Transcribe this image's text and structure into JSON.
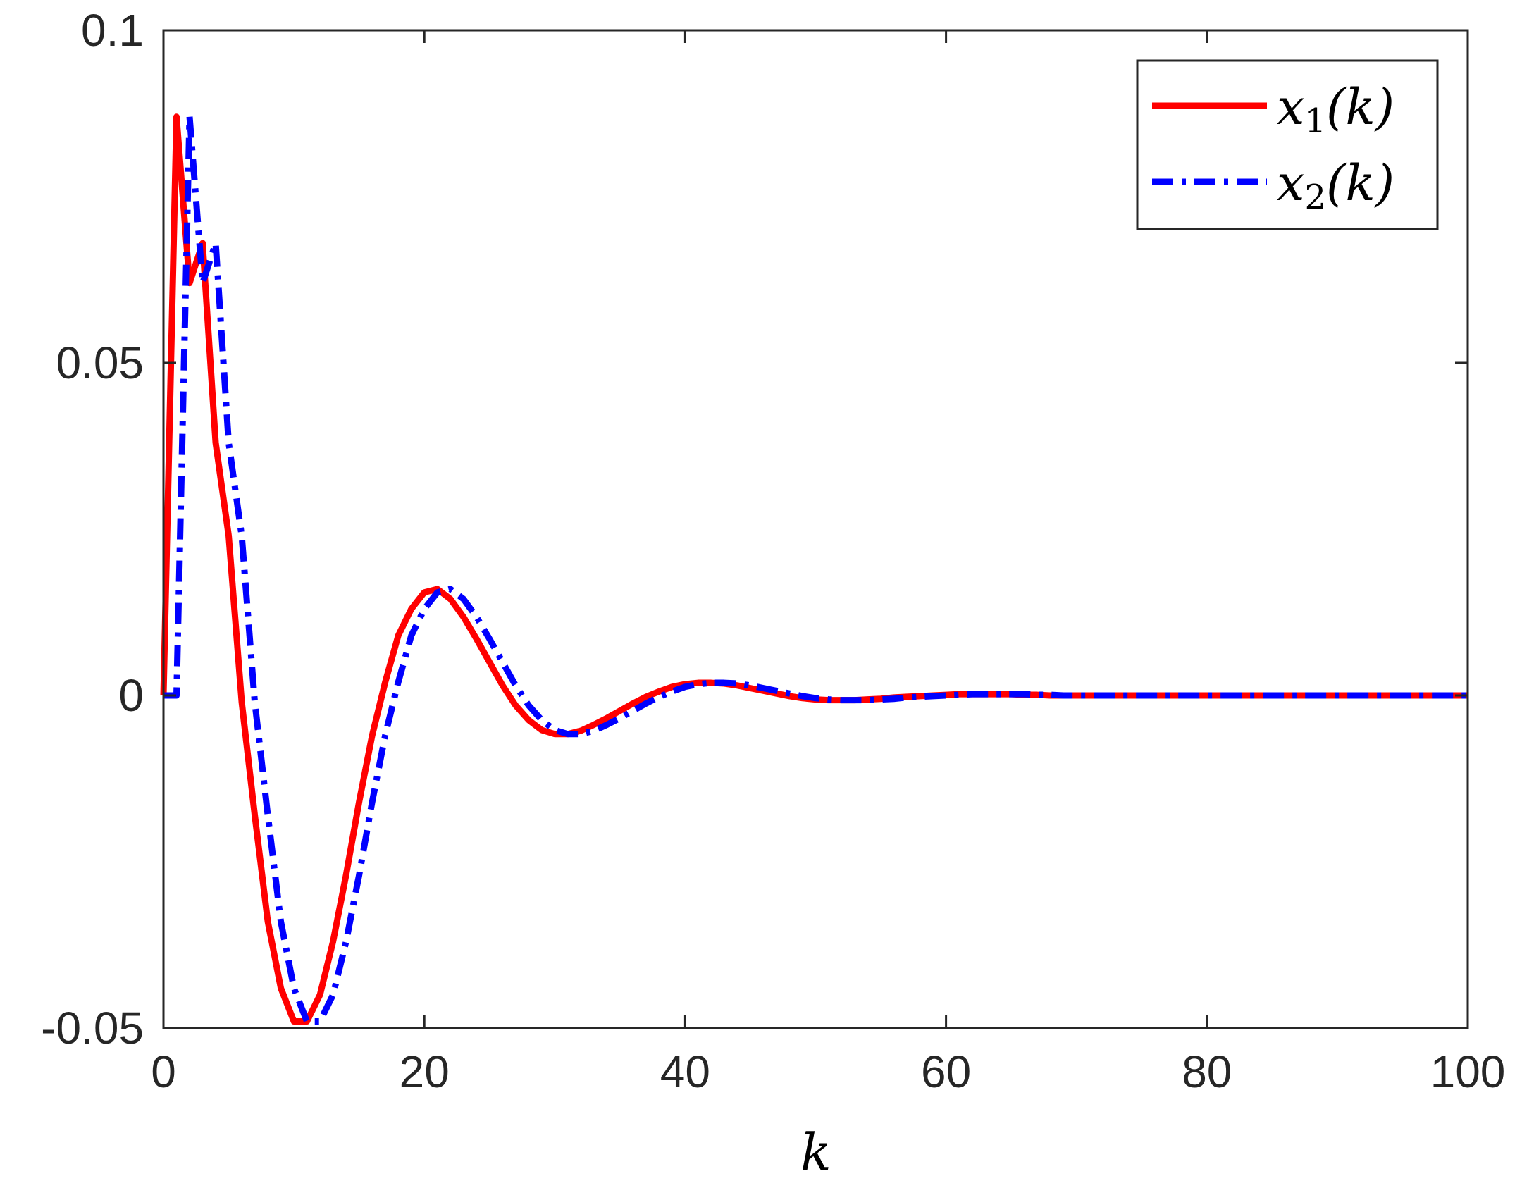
{
  "chart_data": {
    "type": "line",
    "xlabel": "k",
    "ylabel": "",
    "xlim": [
      0,
      100
    ],
    "ylim": [
      -0.05,
      0.1
    ],
    "xticks": [
      "0",
      "20",
      "40",
      "60",
      "80",
      "100"
    ],
    "yticks": [
      "-0.05",
      "0",
      "0.05",
      "0.1"
    ],
    "grid": false,
    "legend_position": "top-right",
    "series": [
      {
        "name": "x_1(k)",
        "legend_base": "x",
        "legend_sub": "1",
        "legend_arg": "(k)",
        "color": "#ff0000",
        "style": "solid",
        "x": [
          0,
          1,
          2,
          3,
          4,
          5,
          6,
          7,
          8,
          9,
          10,
          11,
          12,
          13,
          14,
          15,
          16,
          17,
          18,
          19,
          20,
          21,
          22,
          23,
          24,
          25,
          26,
          27,
          28,
          29,
          30,
          31,
          32,
          33,
          34,
          35,
          36,
          37,
          38,
          39,
          40,
          41,
          42,
          43,
          44,
          45,
          46,
          47,
          48,
          49,
          50,
          51,
          52,
          53,
          54,
          55,
          56,
          57,
          58,
          59,
          60,
          61,
          62,
          63,
          64,
          65,
          66,
          67,
          68,
          69,
          70,
          71,
          72,
          73,
          74,
          75,
          76,
          77,
          78,
          79,
          80,
          81,
          82,
          83,
          84,
          85,
          86,
          87,
          88,
          89,
          90,
          91,
          92,
          93,
          94,
          95,
          96,
          97,
          98,
          99,
          100
        ],
        "y": [
          0,
          0.087,
          0.062,
          0.068,
          0.038,
          0.024,
          -0.001,
          -0.018,
          -0.034,
          -0.044,
          -0.049,
          -0.049,
          -0.045,
          -0.037,
          -0.027,
          -0.016,
          -0.006,
          0.002,
          0.009,
          0.013,
          0.0155,
          0.016,
          0.0145,
          0.0118,
          0.0085,
          0.005,
          0.0015,
          -0.0015,
          -0.0037,
          -0.0052,
          -0.0058,
          -0.0058,
          -0.0053,
          -0.0044,
          -0.0034,
          -0.0023,
          -0.0012,
          -0.0002,
          0.0006,
          0.0013,
          0.0017,
          0.0019,
          0.0019,
          0.0018,
          0.0015,
          0.0011,
          0.0007,
          0.0003,
          -0.0001,
          -0.0004,
          -0.0006,
          -0.0007,
          -0.0007,
          -0.0007,
          -0.0006,
          -0.0005,
          -0.0003,
          -0.0002,
          -0.0001,
          0,
          0.0001,
          0.0002,
          0.0002,
          0.0002,
          0.0002,
          0.0002,
          0.0001,
          0.0001,
          0,
          0,
          0,
          0,
          0,
          0,
          0,
          0,
          0,
          0,
          0,
          0,
          0,
          0,
          0,
          0,
          0,
          0,
          0,
          0,
          0,
          0,
          0,
          0,
          0,
          0,
          0,
          0,
          0,
          0,
          0,
          0,
          0
        ]
      },
      {
        "name": "x_2(k)",
        "legend_base": "x",
        "legend_sub": "2",
        "legend_arg": "(k)",
        "color": "#0000ff",
        "style": "dashdot",
        "x": [
          0,
          1,
          2,
          3,
          4,
          5,
          6,
          7,
          8,
          9,
          10,
          11,
          12,
          13,
          14,
          15,
          16,
          17,
          18,
          19,
          20,
          21,
          22,
          23,
          24,
          25,
          26,
          27,
          28,
          29,
          30,
          31,
          32,
          33,
          34,
          35,
          36,
          37,
          38,
          39,
          40,
          41,
          42,
          43,
          44,
          45,
          46,
          47,
          48,
          49,
          50,
          51,
          52,
          53,
          54,
          55,
          56,
          57,
          58,
          59,
          60,
          61,
          62,
          63,
          64,
          65,
          66,
          67,
          68,
          69,
          70,
          71,
          72,
          73,
          74,
          75,
          76,
          77,
          78,
          79,
          80,
          81,
          82,
          83,
          84,
          85,
          86,
          87,
          88,
          89,
          90,
          91,
          92,
          93,
          94,
          95,
          96,
          97,
          98,
          99,
          100
        ],
        "y": [
          0,
          0,
          0.087,
          0.062,
          0.068,
          0.038,
          0.024,
          -0.001,
          -0.018,
          -0.034,
          -0.044,
          -0.049,
          -0.049,
          -0.045,
          -0.037,
          -0.027,
          -0.016,
          -0.006,
          0.002,
          0.009,
          0.013,
          0.0155,
          0.016,
          0.0145,
          0.0118,
          0.0085,
          0.005,
          0.0015,
          -0.0015,
          -0.0037,
          -0.0052,
          -0.0058,
          -0.0058,
          -0.0053,
          -0.0044,
          -0.0034,
          -0.0023,
          -0.0012,
          -0.0002,
          0.0006,
          0.0013,
          0.0017,
          0.0019,
          0.0019,
          0.0018,
          0.0015,
          0.0011,
          0.0007,
          0.0003,
          -0.0001,
          -0.0004,
          -0.0006,
          -0.0007,
          -0.0007,
          -0.0007,
          -0.0006,
          -0.0005,
          -0.0003,
          -0.0002,
          -0.0001,
          0,
          0.0001,
          0.0002,
          0.0002,
          0.0002,
          0.0002,
          0.0002,
          0.0001,
          0.0001,
          0,
          0,
          0,
          0,
          0,
          0,
          0,
          0,
          0,
          0,
          0,
          0,
          0,
          0,
          0,
          0,
          0,
          0,
          0,
          0,
          0,
          0,
          0,
          0,
          0,
          0,
          0,
          0,
          0,
          0,
          0,
          0
        ]
      }
    ]
  }
}
